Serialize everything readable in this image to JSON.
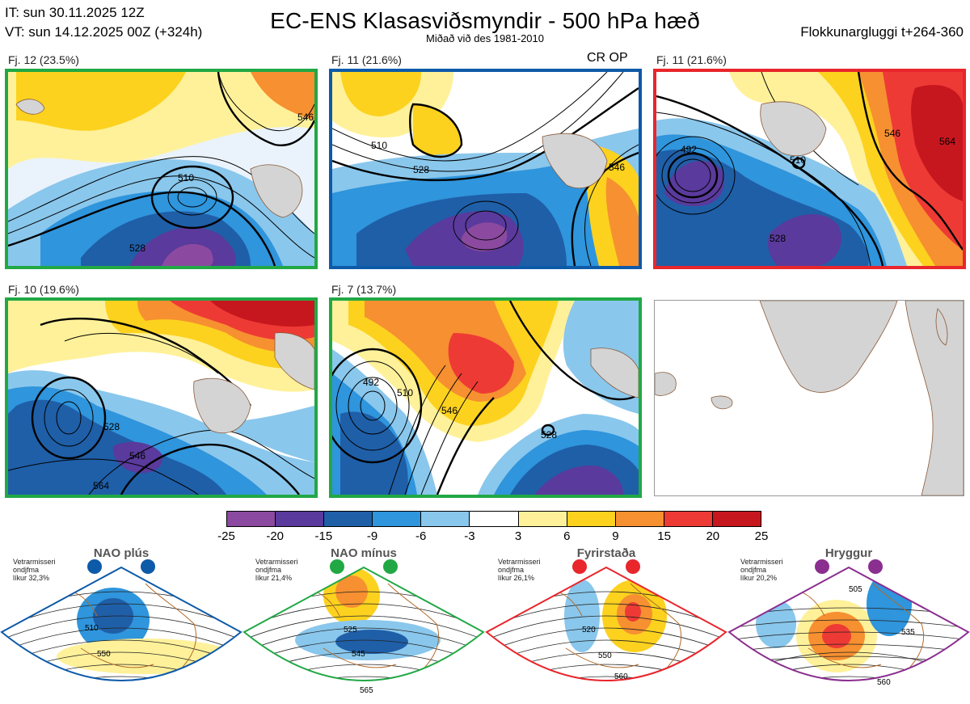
{
  "header": {
    "it_line": "IT: sun 30.11.2025 12Z",
    "vt_line": "VT: sun 14.12.2025 00Z  (+324h)",
    "title": "EC-ENS Klasasviðsmyndir - 500 hPa hæð",
    "subtitle": "Miðað við des 1981-2010",
    "window": "Flokkunargluggi t+264-360"
  },
  "colors": {
    "green": "#21a845",
    "blue": "#0d5aa8",
    "red": "#e8262c",
    "purple": "#8a2e8f",
    "magenta": "#e371e3",
    "land": "#d8d8d8"
  },
  "clusters": [
    {
      "label": "Fj. 12 (23.5%)",
      "frame_color": "#21a845",
      "contours": [
        "510",
        "528",
        "546"
      ],
      "tag": ""
    },
    {
      "label": "Fj. 11 (21.6%)",
      "frame_color": "#0d5aa8",
      "contours": [
        "510",
        "528",
        "546"
      ],
      "tag": "CR OP"
    },
    {
      "label": "Fj. 11 (21.6%)",
      "frame_color": "#e8262c",
      "contours": [
        "492",
        "510",
        "528",
        "546",
        "564"
      ],
      "tag": ""
    },
    {
      "label": "Fj. 10 (19.6%)",
      "frame_color": "#21a845",
      "contours": [
        "528",
        "546",
        "564"
      ],
      "tag": ""
    },
    {
      "label": "Fj. 7 (13.7%)",
      "frame_color": "#21a845",
      "contours": [
        "492",
        "510",
        "528",
        "546"
      ],
      "tag": ""
    }
  ],
  "colorbar": {
    "ticks": [
      "-25",
      "-20",
      "-15",
      "-9",
      "-6",
      "-3",
      "3",
      "6",
      "9",
      "15",
      "20",
      "25"
    ],
    "colors": [
      "#8b4aa0",
      "#5a3a9c",
      "#1f5fa8",
      "#2f95dc",
      "#8ac7ec",
      "#ffffff",
      "#fff19a",
      "#fcd21f",
      "#f79030",
      "#ee3a35",
      "#c7171e"
    ]
  },
  "regimes": [
    {
      "name": "NAO plús",
      "info": [
        "Vetrarmisseri",
        "ondjfma",
        "líkur 32,3%"
      ],
      "color": "#0d5aa8",
      "contours": [
        "510",
        "550"
      ]
    },
    {
      "name": "NAO mínus",
      "info": [
        "Vetrarmisseri",
        "ondjfma",
        "líkur 21,4%"
      ],
      "color": "#21a845",
      "contours": [
        "525",
        "545",
        "565"
      ]
    },
    {
      "name": "Fyrirstaða",
      "info": [
        "Vetrarmisseri",
        "ondjfma",
        "líkur 26,1%"
      ],
      "color": "#e8262c",
      "contours": [
        "520",
        "550",
        "560"
      ]
    },
    {
      "name": "Hryggur",
      "info": [
        "Vetrarmisseri",
        "ondjfma",
        "líkur 20,2%"
      ],
      "color": "#8a2e8f",
      "contours": [
        "505",
        "535",
        "560"
      ]
    }
  ]
}
